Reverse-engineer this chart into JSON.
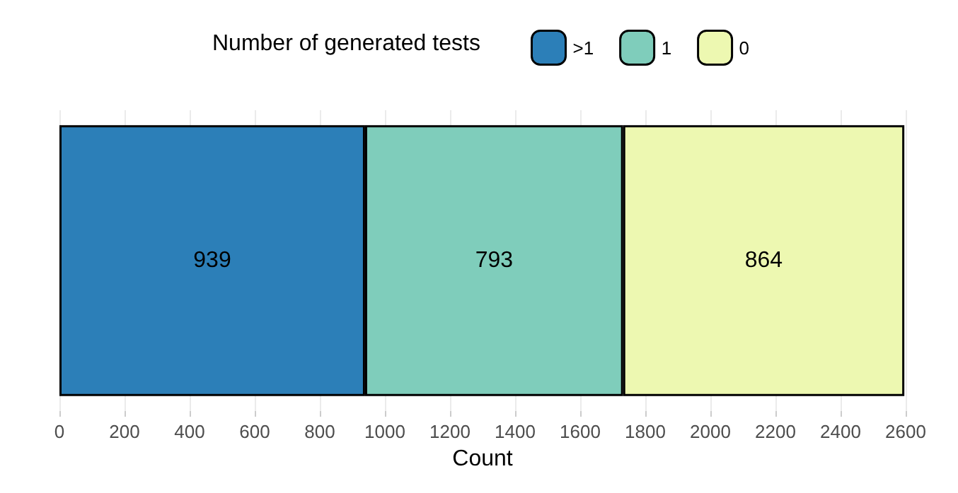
{
  "chart_data": {
    "type": "bar",
    "orientation": "horizontal",
    "stacked": true,
    "xlabel": "Count",
    "legend_title": "Number of generated tests",
    "categories": [
      null
    ],
    "series": [
      {
        "name": ">1",
        "color": "#2c7fb8",
        "values": [
          939
        ]
      },
      {
        "name": "1",
        "color": "#7fcdbb",
        "values": [
          793
        ]
      },
      {
        "name": "0",
        "color": "#edf8b1",
        "values": [
          864
        ]
      }
    ],
    "data_labels": true,
    "xlim": [
      0,
      2600
    ],
    "xticks": [
      0,
      200,
      400,
      600,
      800,
      1000,
      1200,
      1400,
      1600,
      1800,
      2000,
      2200,
      2400,
      2600
    ],
    "grid": "x",
    "legend": "top"
  }
}
